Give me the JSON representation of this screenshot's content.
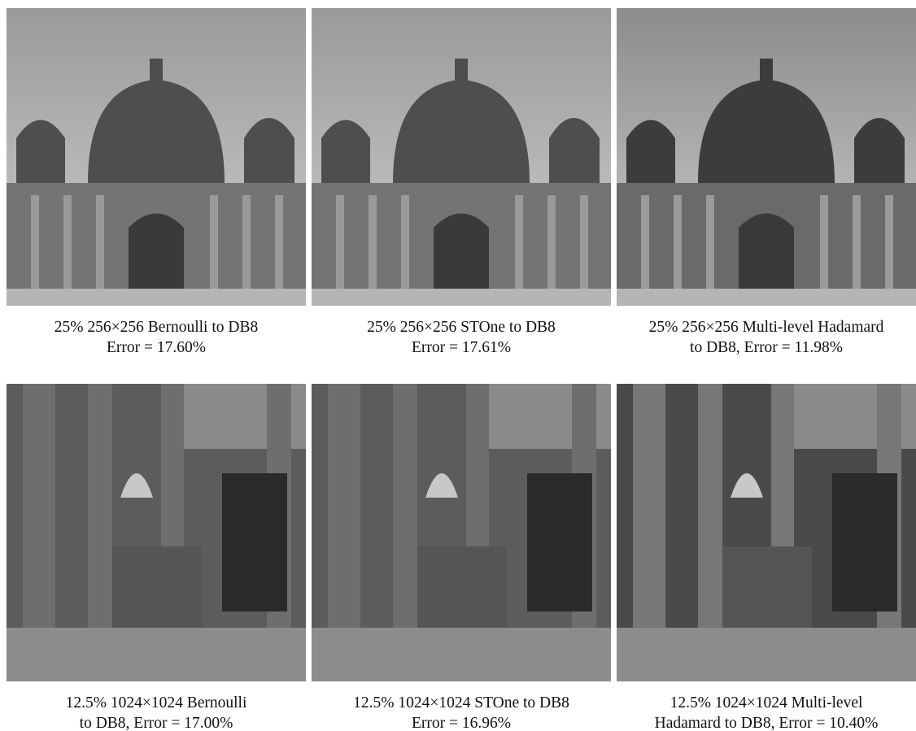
{
  "panels": [
    {
      "caption": [
        "25% 256×256 Bernoulli to DB8",
        "Error = 17.60%"
      ]
    },
    {
      "caption": [
        "25% 256×256 STOne to DB8",
        "Error = 17.61%"
      ]
    },
    {
      "caption": [
        "25% 256×256 Multi-level Hadamard",
        "to DB8, Error = 11.98%"
      ]
    },
    {
      "caption": [
        "12.5% 1024×1024 Bernoulli",
        "to DB8, Error = 17.00%"
      ]
    },
    {
      "caption": [
        "12.5% 1024×1024 STOne to DB8",
        "Error = 16.96%"
      ]
    },
    {
      "caption": [
        "12.5% 1024×1024 Multi-level",
        "Hadamard to DB8, Error = 10.40%"
      ]
    }
  ]
}
